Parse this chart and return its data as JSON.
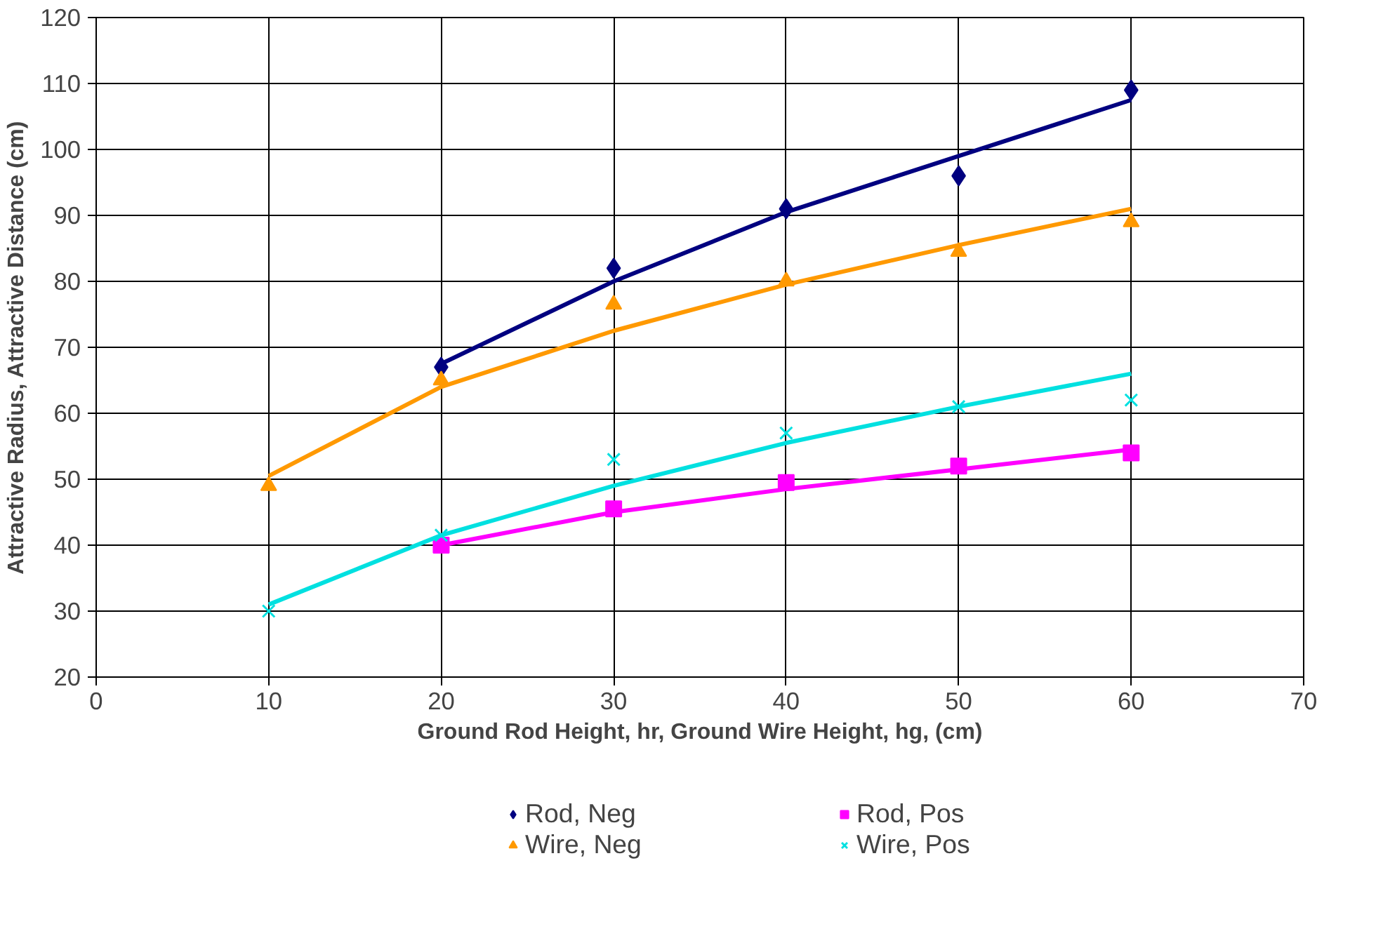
{
  "chart_data": {
    "type": "scatter",
    "xlabel": "Ground Rod Height, hr, Ground Wire Height, hg, (cm)",
    "ylabel": "Attractive Radius, Attractive Distance (cm)",
    "xlim": [
      0,
      70
    ],
    "xticks": [
      0,
      10,
      20,
      30,
      40,
      50,
      60,
      70
    ],
    "ylim": [
      20,
      120
    ],
    "yticks": [
      20,
      30,
      40,
      50,
      60,
      70,
      80,
      90,
      100,
      110,
      120
    ],
    "grid": true,
    "legend": "bottom",
    "series": [
      {
        "name": "Rod, Neg",
        "color": "#000080",
        "marker": "diamond",
        "x": [
          20,
          30,
          40,
          50,
          60
        ],
        "values": [
          67,
          82,
          91,
          96,
          109
        ]
      },
      {
        "name": "Rod, Pos",
        "color": "#ff00ff",
        "marker": "square",
        "x": [
          20,
          30,
          40,
          50,
          60
        ],
        "values": [
          40,
          45.5,
          49.5,
          52,
          54
        ]
      },
      {
        "name": "Wire, Neg",
        "color": "#ff9900",
        "marker": "triangle",
        "x": [
          10,
          20,
          30,
          40,
          50,
          60
        ],
        "values": [
          49,
          65,
          76.5,
          80,
          84.5,
          89
        ]
      },
      {
        "name": "Wire, Pos",
        "color": "#00e0e0",
        "marker": "cross",
        "x": [
          10,
          20,
          30,
          40,
          50,
          60
        ],
        "values": [
          30,
          41.5,
          53,
          57,
          61,
          62
        ]
      },
      {
        "type": "line",
        "color": "#000080",
        "x": [
          20,
          30,
          40,
          50,
          60
        ],
        "values": [
          67.5,
          80,
          90.5,
          99,
          107.5
        ]
      },
      {
        "type": "line",
        "color": "#ff9900",
        "x": [
          10,
          20,
          30,
          40,
          50,
          60
        ],
        "values": [
          50.5,
          64,
          72.5,
          79.5,
          85.5,
          91
        ]
      },
      {
        "type": "line",
        "color": "#00e0e0",
        "x": [
          10,
          20,
          30,
          40,
          50,
          60
        ],
        "values": [
          31,
          41.5,
          49,
          55.5,
          61,
          66
        ]
      },
      {
        "type": "line",
        "color": "#ff00ff",
        "x": [
          20,
          30,
          40,
          50,
          60
        ],
        "values": [
          40,
          45,
          48.5,
          51.5,
          54.5
        ]
      }
    ]
  }
}
